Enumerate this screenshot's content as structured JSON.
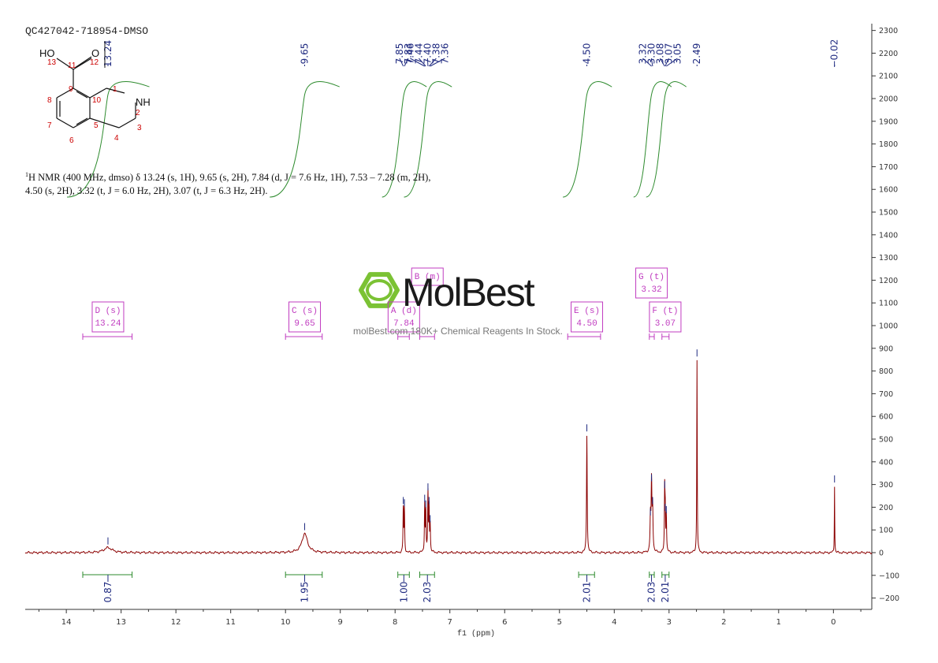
{
  "sample_id": "QC427042-718954-DMSO",
  "nmr_description": {
    "nucleus_sup": "1",
    "line1": "H NMR (400 MHz, dmso) δ 13.24 (s, 1H), 9.65 (s, 2H), 7.84 (d, J = 7.6 Hz, 1H), 7.53 – 7.28 (m, 2H),",
    "line2": "4.50 (s, 2H), 3.32 (t, J = 6.0 Hz, 2H), 3.07 (t, J = 6.3 Hz, 2H)."
  },
  "watermark": {
    "logo": "MolBest",
    "tagline": "molBest.com,180K+ Chemical Reagents In Stock."
  },
  "structure": {
    "atoms": [
      {
        "label": "HO",
        "num": "13"
      },
      {
        "label": "O",
        "num": "12"
      },
      {
        "label": "NH",
        "num": "2"
      }
    ],
    "ring_numbers": [
      "11",
      "9",
      "10",
      "1",
      "3",
      "4",
      "5",
      "6",
      "7",
      "8"
    ]
  },
  "chart_data": {
    "type": "line",
    "xlabel": "f1 (ppm)",
    "xlim": [
      14.75,
      -0.7
    ],
    "ylim": [
      -250,
      2330
    ],
    "x_ticks": [
      14,
      13,
      12,
      11,
      10,
      9,
      8,
      7,
      6,
      5,
      4,
      3,
      2,
      1,
      0
    ],
    "y_ticks": [
      -200,
      -100,
      0,
      100,
      200,
      300,
      400,
      500,
      600,
      700,
      800,
      900,
      1000,
      1100,
      1200,
      1300,
      1400,
      1500,
      1600,
      1700,
      1800,
      1900,
      2000,
      2100,
      2200,
      2300
    ],
    "peaks": [
      {
        "ppm": 13.24,
        "height": 22,
        "width": 0.09
      },
      {
        "ppm": 9.65,
        "height": 85,
        "width": 0.06
      },
      {
        "ppm": 7.85,
        "height": 200,
        "width": 0.006
      },
      {
        "ppm": 7.83,
        "height": 190,
        "width": 0.006
      },
      {
        "ppm": 7.46,
        "height": 210,
        "width": 0.006
      },
      {
        "ppm": 7.44,
        "height": 185,
        "width": 0.006
      },
      {
        "ppm": 7.4,
        "height": 260,
        "width": 0.006
      },
      {
        "ppm": 7.38,
        "height": 200,
        "width": 0.006
      },
      {
        "ppm": 7.36,
        "height": 120,
        "width": 0.006
      },
      {
        "ppm": 4.5,
        "height": 520,
        "width": 0.007
      },
      {
        "ppm": 3.32,
        "height": 300,
        "width": 0.008
      },
      {
        "ppm": 3.3,
        "height": 200,
        "width": 0.008
      },
      {
        "ppm": 3.34,
        "height": 150,
        "width": 0.008
      },
      {
        "ppm": 3.08,
        "height": 270,
        "width": 0.006
      },
      {
        "ppm": 3.07,
        "height": 170,
        "width": 0.006
      },
      {
        "ppm": 3.05,
        "height": 160,
        "width": 0.006
      },
      {
        "ppm": 2.49,
        "height": 850,
        "width": 0.005
      },
      {
        "ppm": -0.02,
        "height": 295,
        "width": 0.004
      }
    ],
    "peak_labels": [
      {
        "group": [
          13.24
        ],
        "labels": [
          "13.24"
        ]
      },
      {
        "group": [
          9.65
        ],
        "labels": [
          "9.65"
        ]
      },
      {
        "group": [
          7.85,
          7.83
        ],
        "labels": [
          "7.85",
          "7.83"
        ]
      },
      {
        "group": [
          7.46,
          7.44,
          7.4,
          7.38,
          7.36
        ],
        "labels": [
          "7.46",
          "7.44",
          "7.40",
          "7.38",
          "7.36"
        ]
      },
      {
        "group": [
          4.5
        ],
        "labels": [
          "4.50"
        ]
      },
      {
        "group": [
          3.32,
          3.3,
          3.08,
          3.07,
          3.05
        ],
        "labels": [
          "3.32",
          "3.30",
          "3.08",
          "3.07",
          "3.05"
        ]
      },
      {
        "group": [
          2.49
        ],
        "labels": [
          "2.49"
        ]
      },
      {
        "group": [
          -0.02
        ],
        "labels": [
          "-0.02"
        ]
      }
    ],
    "integrals": [
      {
        "from": 13.7,
        "to": 12.8,
        "label_ppm": 13.24,
        "value": "0.87"
      },
      {
        "from": 10.0,
        "to": 9.33,
        "label_ppm": 9.65,
        "value": "1.95"
      },
      {
        "from": 7.95,
        "to": 7.74,
        "label_ppm": 7.84,
        "value": "1.00"
      },
      {
        "from": 7.55,
        "to": 7.28,
        "label_ppm": 7.41,
        "value": "2.03"
      },
      {
        "from": 4.65,
        "to": 4.36,
        "label_ppm": 4.5,
        "value": "2.01"
      },
      {
        "from": 3.36,
        "to": 3.27,
        "label_ppm": 3.32,
        "value": "2.03"
      },
      {
        "from": 3.13,
        "to": 3.0,
        "label_ppm": 3.07,
        "value": "2.01"
      }
    ],
    "multiplets": [
      {
        "name": "D (s)",
        "shift": "13.24",
        "ppm": 13.24,
        "from": 13.7,
        "to": 12.8,
        "level": 0
      },
      {
        "name": "C (s)",
        "shift": "9.65",
        "ppm": 9.65,
        "from": 10.0,
        "to": 9.33,
        "level": 0
      },
      {
        "name": "A (d)",
        "shift": "7.84",
        "ppm": 7.84,
        "from": 7.95,
        "to": 7.74,
        "level": 0
      },
      {
        "name": "B (m)",
        "shift": "",
        "ppm": 7.41,
        "from": 7.55,
        "to": 7.28,
        "level": 1
      },
      {
        "name": "E (s)",
        "shift": "4.50",
        "ppm": 4.5,
        "from": 4.85,
        "to": 4.25,
        "level": 0
      },
      {
        "name": "G (t)",
        "shift": "3.32",
        "ppm": 3.32,
        "from": 3.36,
        "to": 3.27,
        "level": 1
      },
      {
        "name": "F (t)",
        "shift": "3.07",
        "ppm": 3.07,
        "from": 3.13,
        "to": 3.0,
        "level": 0
      }
    ],
    "colors": {
      "spectrum": "#8b0000",
      "integral": "#2e8b2e",
      "label": "#1f2a80",
      "multiplet": "#c03cc0",
      "logo": "#7bc234"
    }
  }
}
